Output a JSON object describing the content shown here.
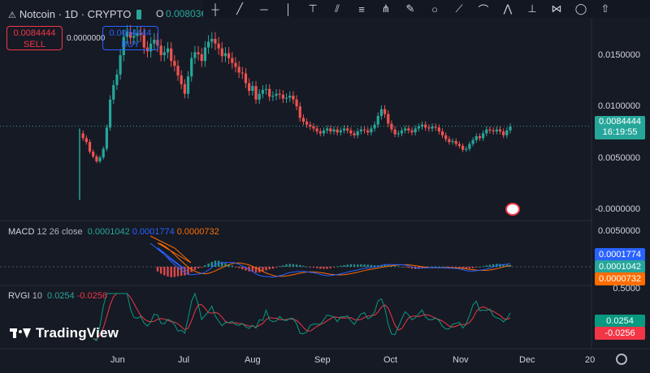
{
  "header": {
    "symbol": "Notcoin · 1D · CRYPTO",
    "open_label": "O",
    "open_value": "0.00803€"
  },
  "trade": {
    "sell_price": "0.0084444",
    "sell_label": "SELL",
    "spread": "0.0000000",
    "buy_price": "0.0084444",
    "buy_label": "BUY"
  },
  "toolbar": {
    "icons": [
      "crosshair-icon",
      "trend-line-icon",
      "horizontal-line-icon",
      "vertical-line-icon",
      "ray-icon",
      "parallel-channel-icon",
      "fib-icon",
      "pitchfork-icon",
      "brush-icon",
      "circle-icon",
      "path-icon",
      "arc-icon",
      "zigzag-icon",
      "anchor-icon",
      "xabcd-icon",
      "comment-icon",
      "up-arrow-icon"
    ]
  },
  "price_axis": {
    "labels": [
      "0.0150000",
      "0.0100000",
      "0.0050000",
      "-0.0000000"
    ],
    "current_price": "0.0084444",
    "countdown": "16:19:55"
  },
  "macd": {
    "name": "MACD",
    "params": "12 26 close",
    "v1": "0.0001042",
    "v2": "0.0001774",
    "v3": "0.0000732",
    "axis_label": "0.0050000",
    "tags": [
      "0.0001774",
      "0.0001042",
      "0.0000732"
    ],
    "colors": {
      "macd": "#2962ff",
      "signal": "#ff6d00",
      "hist": "#26a69a",
      "v1": "#26a69a"
    }
  },
  "rvgi": {
    "name": "RVGI",
    "param": "10",
    "v1": "0.0254",
    "v2": "-0.0256",
    "axis_label": "0.5000",
    "tags": [
      "0.0254",
      "-0.0256"
    ]
  },
  "time_axis": {
    "labels": [
      "Jun",
      "Jul",
      "Aug",
      "Sep",
      "Oct",
      "Nov",
      "Dec",
      "20"
    ]
  },
  "branding": {
    "logo_text": "TradingView"
  },
  "colors": {
    "up": "#26a69a",
    "down": "#ef5350",
    "bg": "#161a25",
    "blue": "#2962ff",
    "orange": "#ff6d00"
  },
  "chart_data": {
    "type": "candlestick",
    "close_series": [
      0.0077,
      0.0072,
      0.0068,
      0.0058,
      0.0053,
      0.0048,
      0.0052,
      0.0061,
      0.0083,
      0.0112,
      0.0127,
      0.0138,
      0.0158,
      0.0177,
      0.0182,
      0.0176,
      0.0178,
      0.0181,
      0.0179,
      0.0166,
      0.0162,
      0.017,
      0.0174,
      0.0168,
      0.0158,
      0.0161,
      0.0165,
      0.0152,
      0.0147,
      0.0137,
      0.0128,
      0.0118,
      0.0136,
      0.0155,
      0.0161,
      0.0159,
      0.0152,
      0.0166,
      0.0172,
      0.0175,
      0.017,
      0.0165,
      0.0157,
      0.016,
      0.0155,
      0.015,
      0.0146,
      0.014,
      0.0139,
      0.0129,
      0.0121,
      0.0126,
      0.0112,
      0.0118,
      0.0122,
      0.0123,
      0.0115,
      0.0116,
      0.0118,
      0.0117,
      0.0113,
      0.0114,
      0.0116,
      0.0112,
      0.0105,
      0.0093,
      0.0089,
      0.0086,
      0.0084,
      0.0082,
      0.0079,
      0.0077,
      0.008,
      0.0082,
      0.0079,
      0.0081,
      0.0078,
      0.008,
      0.0082,
      0.008,
      0.0077,
      0.0075,
      0.0079,
      0.0081,
      0.008,
      0.0078,
      0.0082,
      0.0086,
      0.0095,
      0.0102,
      0.0097,
      0.0087,
      0.0081,
      0.0076,
      0.0077,
      0.008,
      0.0082,
      0.008,
      0.0078,
      0.0082,
      0.0084,
      0.0086,
      0.0083,
      0.0082,
      0.0084,
      0.0083,
      0.0079,
      0.0075,
      0.0071,
      0.0068,
      0.0069,
      0.0066,
      0.0064,
      0.006,
      0.0061,
      0.0066,
      0.007,
      0.0074,
      0.0072,
      0.0077,
      0.0081,
      0.008,
      0.0079,
      0.0081,
      0.0079,
      0.0075,
      0.008,
      0.0084
    ],
    "ylim": [
      -0.0005,
      0.019
    ],
    "yticks": [
      0.015,
      0.01,
      0.005,
      0.0
    ],
    "x_months": [
      "Jun",
      "Jul",
      "Aug",
      "Sep",
      "Oct",
      "Nov",
      "Dec",
      "20"
    ]
  }
}
